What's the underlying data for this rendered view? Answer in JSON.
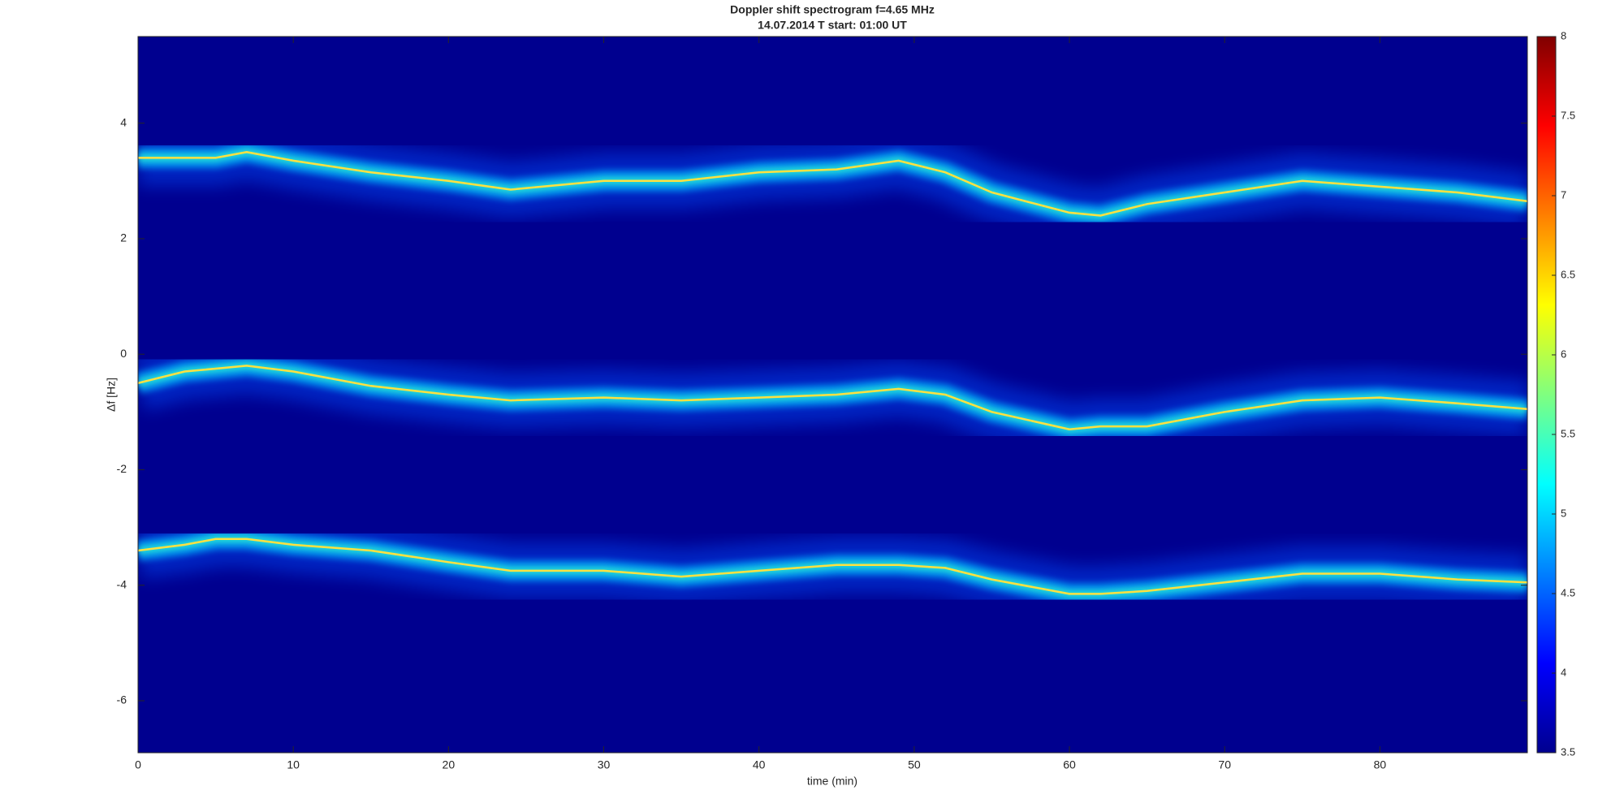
{
  "chart_data": {
    "type": "spectrogram",
    "title": "Doppler shift spectrogram f=4.65 MHz",
    "subtitle": "14.07.2014   T start: 01:00 UT",
    "x_label": "time (min)",
    "y_label": "Δf [Hz]",
    "x": [
      0,
      3,
      5,
      7,
      10,
      15,
      20,
      24,
      30,
      35,
      40,
      45,
      49,
      52,
      55,
      60,
      62,
      65,
      70,
      75,
      80,
      85,
      89.5
    ],
    "series": [
      {
        "values": [
          3.4,
          3.4,
          3.4,
          3.5,
          3.35,
          3.15,
          3.0,
          2.85,
          3.0,
          3.0,
          3.15,
          3.2,
          3.35,
          3.15,
          2.8,
          2.45,
          2.4,
          2.6,
          2.8,
          3.0,
          2.9,
          2.8,
          2.65
        ]
      },
      {
        "values": [
          -0.5,
          -0.3,
          -0.25,
          -0.2,
          -0.3,
          -0.55,
          -0.7,
          -0.8,
          -0.75,
          -0.8,
          -0.75,
          -0.7,
          -0.6,
          -0.7,
          -1.0,
          -1.3,
          -1.25,
          -1.25,
          -1.0,
          -0.8,
          -0.75,
          -0.85,
          -0.95
        ]
      },
      {
        "values": [
          -3.4,
          -3.3,
          -3.2,
          -3.2,
          -3.3,
          -3.4,
          -3.6,
          -3.75,
          -3.75,
          -3.85,
          -3.75,
          -3.65,
          -3.65,
          -3.7,
          -3.9,
          -4.15,
          -4.15,
          -4.1,
          -3.95,
          -3.8,
          -3.8,
          -3.9,
          -3.95
        ]
      }
    ],
    "xlim": [
      0,
      89.5
    ],
    "xticks": [
      0,
      10,
      20,
      30,
      40,
      50,
      60,
      70,
      80
    ],
    "ylim": [
      -6.9,
      5.5
    ],
    "yticks": [
      -6,
      -4,
      -2,
      0,
      2,
      4
    ],
    "colormap": "jet",
    "clim": [
      3.5,
      8
    ],
    "cticks": [
      3.5,
      4,
      4.5,
      5,
      5.5,
      6,
      6.5,
      7,
      7.5,
      8
    ]
  }
}
